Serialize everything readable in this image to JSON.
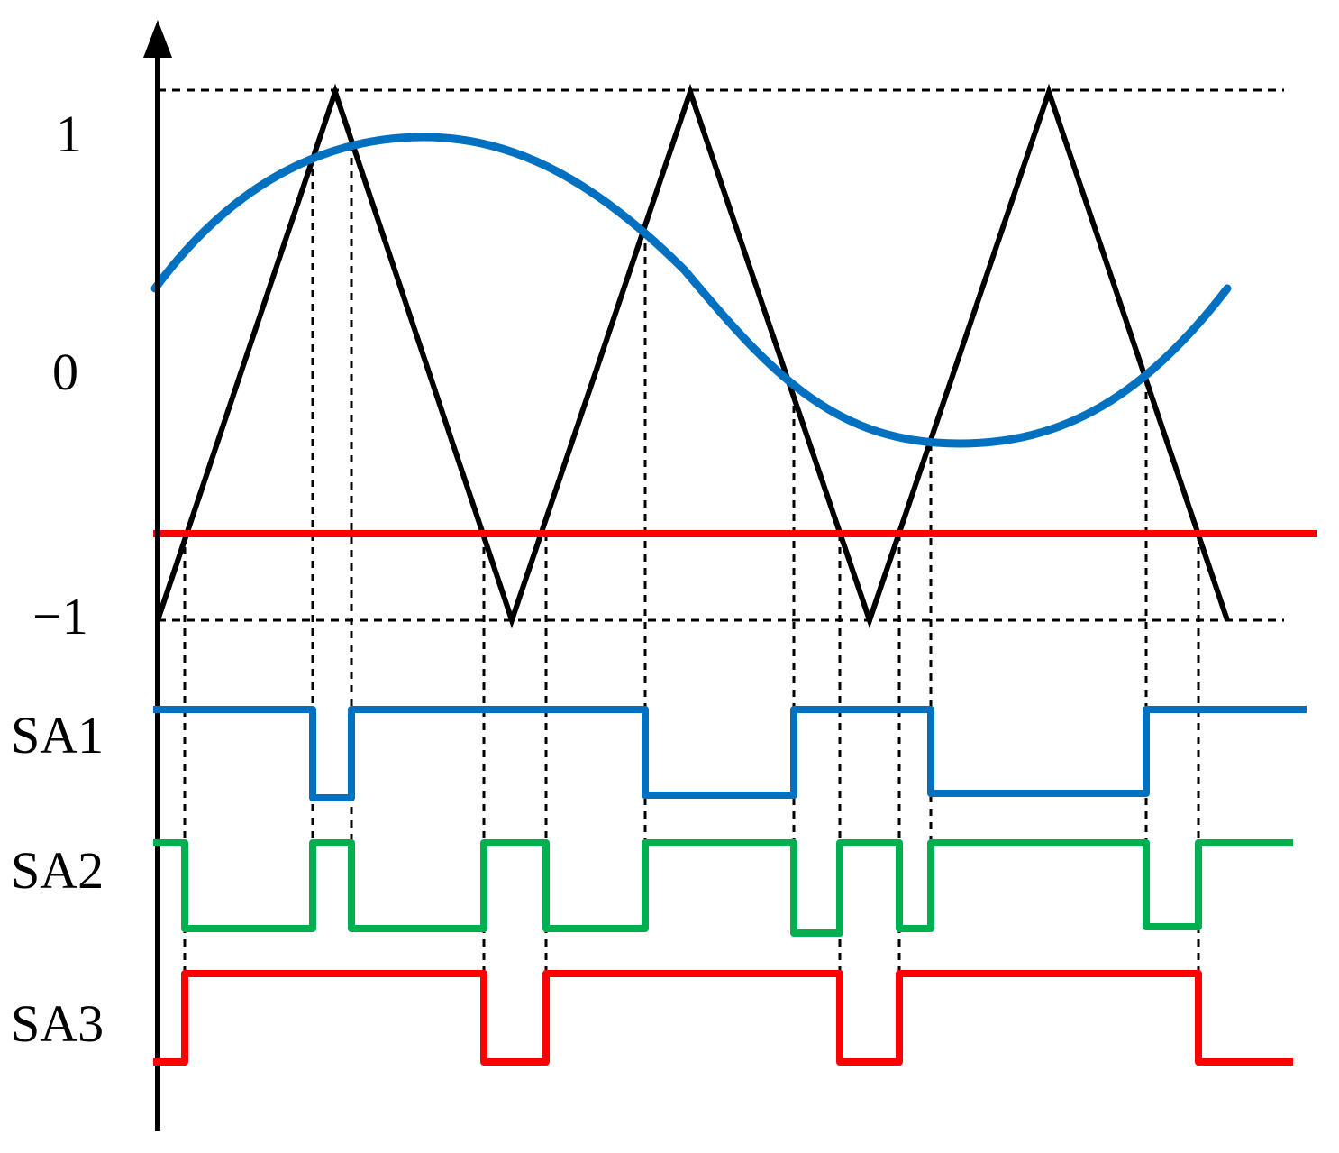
{
  "labels": {
    "y_top": "1",
    "y_mid": "0",
    "y_bottom": "−1",
    "sa1": "SA1",
    "sa2": "SA2",
    "sa3": "SA3"
  },
  "colors": {
    "sine": "#0070c0",
    "carrier": "#000000",
    "reference": "#ff0000",
    "sa1": "#0070c0",
    "sa2": "#00b050",
    "sa3": "#ff0000",
    "guides": "#000000"
  },
  "icons": [
    "up-arrow-icon"
  ]
}
